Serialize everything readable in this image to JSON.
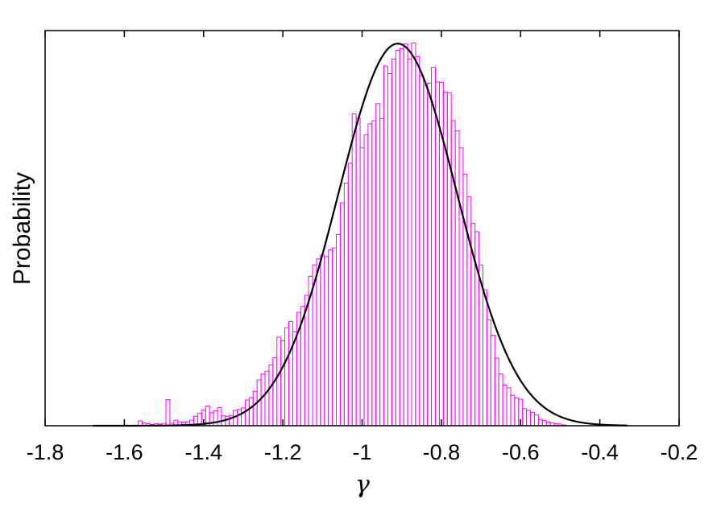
{
  "chart_data": {
    "type": "bar",
    "subtype": "histogram-with-fit",
    "xlabel": "γ",
    "ylabel": "Probability",
    "xlim": [
      -1.8,
      -0.2
    ],
    "ylim": [
      0,
      1.0
    ],
    "y_ticks_labeled": false,
    "grid": false,
    "legend": "none",
    "x_ticks": [
      -1.8,
      -1.6,
      -1.4,
      -1.2,
      -1,
      -0.8,
      -0.6,
      -0.4,
      -0.2
    ],
    "x_tick_labels": [
      "-1.8",
      "-1.6",
      "-1.4",
      "-1.2",
      "-1",
      "-0.8",
      "-0.6",
      "-0.4",
      "-0.2"
    ],
    "colors": {
      "histogram": "#ff00ff",
      "fit": "#000000"
    },
    "series": [
      {
        "kind": "histogram",
        "bin_width": 0.01,
        "bins": [
          [
            -1.56,
            0.012
          ],
          [
            -1.55,
            0.007
          ],
          [
            -1.54,
            0.005
          ],
          [
            -1.53,
            0.003
          ],
          [
            -1.52,
            0.005
          ],
          [
            -1.51,
            0.004
          ],
          [
            -1.5,
            0.006
          ],
          [
            -1.49,
            0.066
          ],
          [
            -1.48,
            0.006
          ],
          [
            -1.47,
            0.014
          ],
          [
            -1.46,
            0.01
          ],
          [
            -1.45,
            0.009
          ],
          [
            -1.44,
            0.01
          ],
          [
            -1.43,
            0.014
          ],
          [
            -1.42,
            0.024
          ],
          [
            -1.41,
            0.031
          ],
          [
            -1.4,
            0.04
          ],
          [
            -1.39,
            0.05
          ],
          [
            -1.38,
            0.033
          ],
          [
            -1.37,
            0.038
          ],
          [
            -1.36,
            0.046
          ],
          [
            -1.35,
            0.025
          ],
          [
            -1.34,
            0.024
          ],
          [
            -1.33,
            0.026
          ],
          [
            -1.32,
            0.039
          ],
          [
            -1.31,
            0.041
          ],
          [
            -1.3,
            0.045
          ],
          [
            -1.29,
            0.065
          ],
          [
            -1.28,
            0.071
          ],
          [
            -1.27,
            0.087
          ],
          [
            -1.26,
            0.116
          ],
          [
            -1.25,
            0.131
          ],
          [
            -1.24,
            0.138
          ],
          [
            -1.23,
            0.154
          ],
          [
            -1.22,
            0.172
          ],
          [
            -1.21,
            0.224
          ],
          [
            -1.2,
            0.215
          ],
          [
            -1.19,
            0.248
          ],
          [
            -1.18,
            0.264
          ],
          [
            -1.17,
            0.238
          ],
          [
            -1.16,
            0.287
          ],
          [
            -1.15,
            0.302
          ],
          [
            -1.14,
            0.33
          ],
          [
            -1.13,
            0.378
          ],
          [
            -1.12,
            0.407
          ],
          [
            -1.11,
            0.422
          ],
          [
            -1.1,
            0.432
          ],
          [
            -1.09,
            0.428
          ],
          [
            -1.08,
            0.445
          ],
          [
            -1.07,
            0.45
          ],
          [
            -1.06,
            0.484
          ],
          [
            -1.05,
            0.564
          ],
          [
            -1.04,
            0.614
          ],
          [
            -1.03,
            0.664
          ],
          [
            -1.02,
            0.789
          ],
          [
            -1.01,
            0.778
          ],
          [
            -1.0,
            0.703
          ],
          [
            -0.99,
            0.736
          ],
          [
            -0.98,
            0.764
          ],
          [
            -0.97,
            0.772
          ],
          [
            -0.96,
            0.815
          ],
          [
            -0.95,
            0.777
          ],
          [
            -0.94,
            0.91
          ],
          [
            -0.93,
            0.891
          ],
          [
            -0.92,
            0.928
          ],
          [
            -0.91,
            0.95
          ],
          [
            -0.9,
            0.954
          ],
          [
            -0.89,
            0.966
          ],
          [
            -0.88,
            0.928
          ],
          [
            -0.87,
            0.969
          ],
          [
            -0.86,
            0.934
          ],
          [
            -0.85,
            0.886
          ],
          [
            -0.84,
            0.861
          ],
          [
            -0.83,
            0.867
          ],
          [
            -0.82,
            0.907
          ],
          [
            -0.81,
            0.87
          ],
          [
            -0.8,
            0.869
          ],
          [
            -0.79,
            0.844
          ],
          [
            -0.78,
            0.843
          ],
          [
            -0.77,
            0.772
          ],
          [
            -0.76,
            0.746
          ],
          [
            -0.75,
            0.703
          ],
          [
            -0.74,
            0.637
          ],
          [
            -0.73,
            0.579
          ],
          [
            -0.72,
            0.512
          ],
          [
            -0.71,
            0.491
          ],
          [
            -0.7,
            0.407
          ],
          [
            -0.69,
            0.344
          ],
          [
            -0.68,
            0.268
          ],
          [
            -0.67,
            0.229
          ],
          [
            -0.66,
            0.171
          ],
          [
            -0.65,
            0.131
          ],
          [
            -0.64,
            0.103
          ],
          [
            -0.63,
            0.096
          ],
          [
            -0.62,
            0.077
          ],
          [
            -0.61,
            0.071
          ],
          [
            -0.6,
            0.067
          ],
          [
            -0.59,
            0.043
          ],
          [
            -0.58,
            0.039
          ],
          [
            -0.57,
            0.034
          ],
          [
            -0.56,
            0.027
          ],
          [
            -0.55,
            0.016
          ],
          [
            -0.54,
            0.013
          ],
          [
            -0.53,
            0.009
          ],
          [
            -0.52,
            0.007
          ],
          [
            -0.51,
            0.005
          ],
          [
            -0.5,
            0.004
          ],
          [
            -0.49,
            0.002
          ]
        ]
      },
      {
        "kind": "fit-curve",
        "function": "normal-distribution",
        "mean": -0.91,
        "std": 0.15,
        "peak": 0.967,
        "x_range": [
          -1.68,
          -0.33
        ]
      }
    ]
  }
}
